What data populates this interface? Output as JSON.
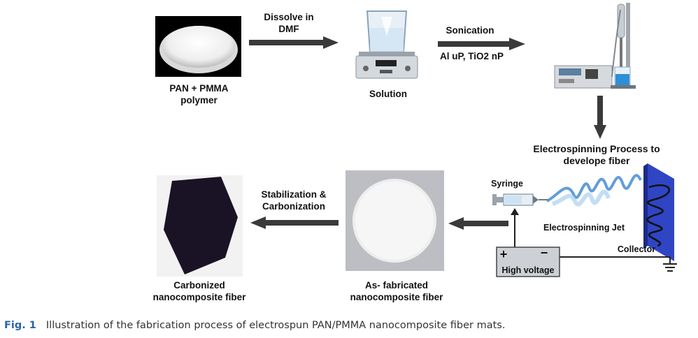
{
  "steps": {
    "polymer": {
      "line1": "PAN + PMMA",
      "line2": "polymer"
    },
    "dissolve": {
      "line1": "Dissolve in",
      "line2": "DMF"
    },
    "solution": {
      "label": "Solution"
    },
    "sonication": {
      "line1": "Sonication",
      "line2": "Al uP, TiO2 nP"
    },
    "electrospinning_title": {
      "line1": "Electrospinning Process to",
      "line2": "develope fiber"
    },
    "syringe": {
      "label": "Syringe"
    },
    "jet": {
      "label": "Electrospinning Jet"
    },
    "collector": {
      "label": "Collector"
    },
    "voltage": {
      "plus": "+",
      "minus": "−",
      "label": "High voltage"
    },
    "as_fabricated": {
      "line1": "As- fabricated",
      "line2": "nanocomposite fiber"
    },
    "stabilization": {
      "line1": "Stabilization &",
      "line2": "Carbonization"
    },
    "carbonized": {
      "line1": "Carbonized",
      "line2": "nanocomposite fiber"
    }
  },
  "caption": {
    "fig": "Fig. 1",
    "text": "Illustration of the fabrication process of electrospun PAN/PMMA nanocomposite fiber mats."
  },
  "colors": {
    "arrow": "#3a3a3a",
    "caption_fig": "#2a63a8",
    "collector": "#2a3db8",
    "jet": "#3a86d0"
  }
}
